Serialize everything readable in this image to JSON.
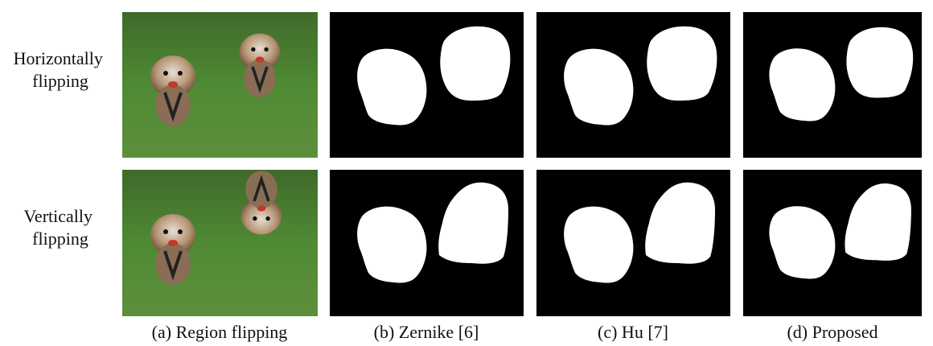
{
  "figure": {
    "rows": [
      {
        "label_lines": [
          "Horizontally",
          "flipping"
        ]
      },
      {
        "label_lines": [
          "Vertically",
          "flipping"
        ]
      }
    ],
    "columns": [
      {
        "caption": "(a) Region flipping"
      },
      {
        "caption": "(b) Zernike [6]"
      },
      {
        "caption": "(c) Hu [7]"
      },
      {
        "caption": "(d) Proposed"
      }
    ]
  }
}
